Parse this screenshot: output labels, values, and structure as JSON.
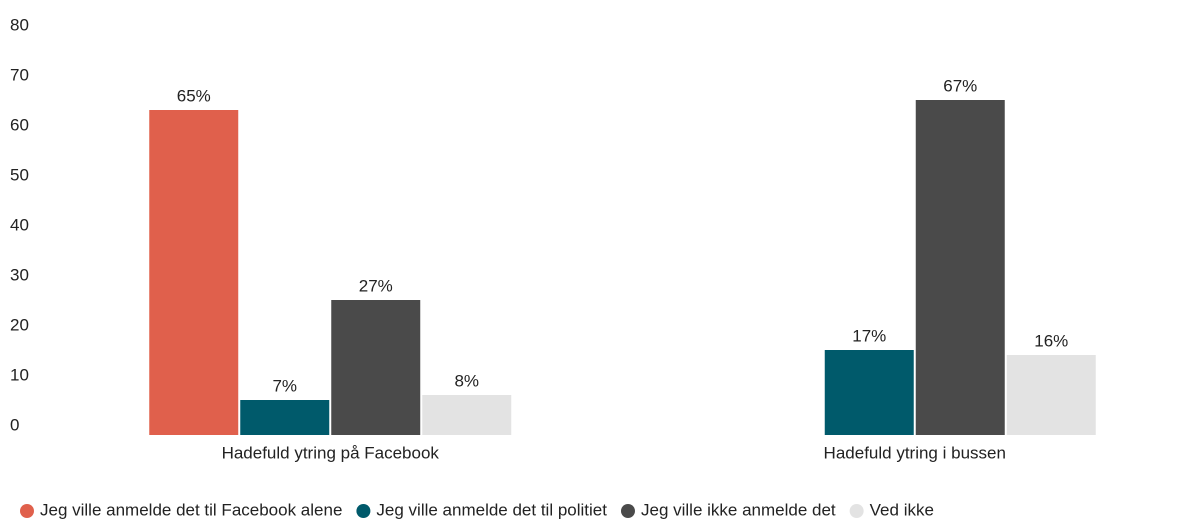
{
  "chart_data": {
    "type": "bar",
    "categories": [
      "Hadefuld ytring på Facebook",
      "Hadefuld ytring i bussen"
    ],
    "series": [
      {
        "name": "Jeg ville anmelde det til Facebook alene",
        "color": "#e0604c",
        "values": [
          65,
          null
        ],
        "value_labels": [
          "65%",
          null
        ]
      },
      {
        "name": "Jeg ville anmelde det til politiet",
        "color": "#005a6b",
        "values": [
          7,
          17
        ],
        "value_labels": [
          "7%",
          "17%"
        ]
      },
      {
        "name": "Jeg ville ikke anmelde det",
        "color": "#4a4a4a",
        "values": [
          27,
          67
        ],
        "value_labels": [
          "27%",
          "67%"
        ]
      },
      {
        "name": "Ved ikke",
        "color": "#e3e3e3",
        "values": [
          8,
          16
        ],
        "value_labels": [
          "8%",
          "16%"
        ]
      }
    ],
    "ylim": [
      0,
      80
    ],
    "yticks": [
      0,
      10,
      20,
      30,
      40,
      50,
      60,
      70,
      80
    ],
    "grid": false,
    "legend": "bottom"
  }
}
